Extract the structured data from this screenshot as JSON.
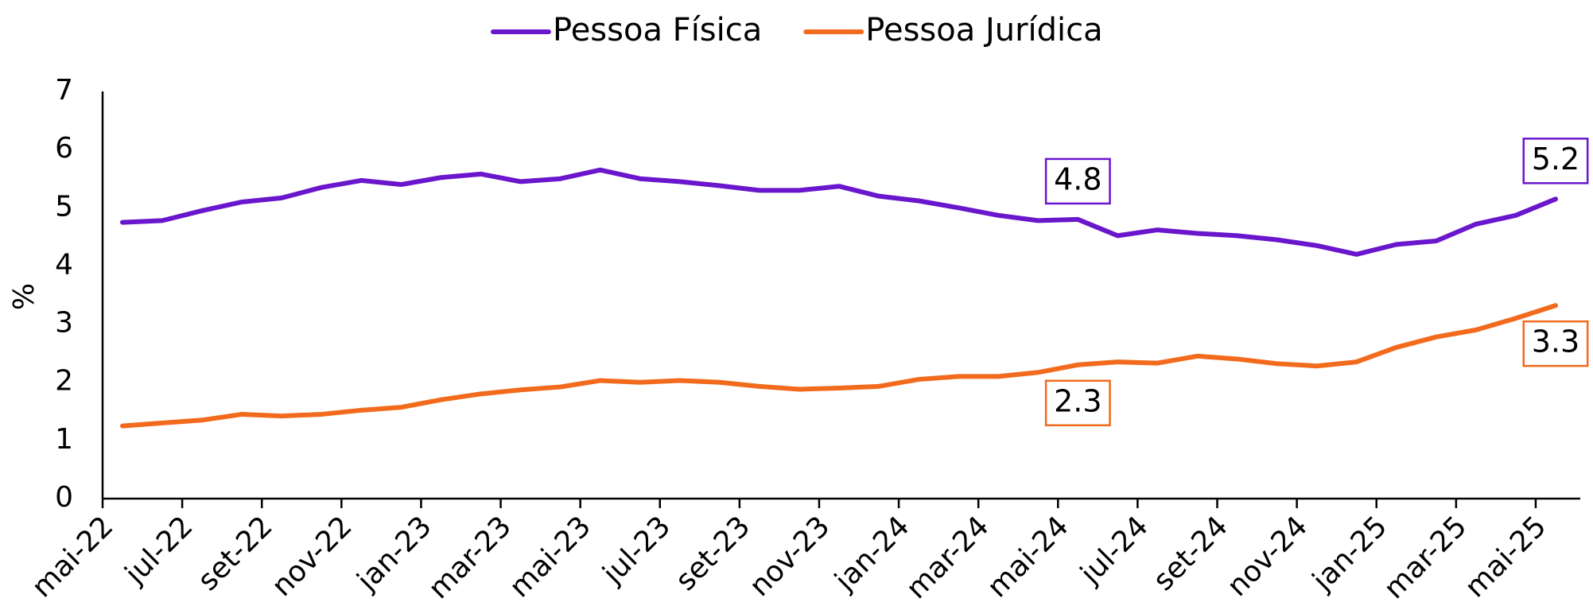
{
  "chart_data": {
    "type": "line",
    "y_label": "%",
    "categories": [
      "mai-22",
      null,
      "jul-22",
      null,
      "set-22",
      null,
      "nov-22",
      null,
      "jan-23",
      null,
      "mar-23",
      null,
      "mai-23",
      null,
      "jul-23",
      null,
      "set-23",
      null,
      "nov-23",
      null,
      "jan-24",
      null,
      "mar-24",
      null,
      "mai-24",
      null,
      "jul-24",
      null,
      "set-24",
      null,
      "nov-24",
      null,
      "jan-25",
      null,
      "mar-25",
      null,
      "mai-25"
    ],
    "series": [
      {
        "name": "Pessoa Física",
        "color": "#6a16cc",
        "values": [
          4.75,
          4.78,
          4.95,
          5.1,
          5.17,
          5.35,
          5.47,
          5.4,
          5.52,
          5.58,
          5.45,
          5.5,
          5.65,
          5.5,
          5.45,
          5.38,
          5.3,
          5.3,
          5.37,
          5.2,
          5.12,
          5.0,
          4.87,
          4.78,
          4.8,
          4.52,
          4.62,
          4.56,
          4.52,
          4.45,
          4.35,
          4.2,
          4.37,
          4.43,
          4.72,
          4.87,
          5.15
        ],
        "value_labels": [
          null,
          null,
          null,
          null,
          null,
          null,
          null,
          null,
          null,
          null,
          null,
          null,
          null,
          null,
          null,
          null,
          null,
          null,
          null,
          null,
          null,
          null,
          null,
          null,
          "4.8",
          null,
          null,
          null,
          null,
          null,
          null,
          null,
          null,
          null,
          null,
          null,
          "5.2"
        ]
      },
      {
        "name": "Pessoa Jurídica",
        "color": "#f26b1d",
        "values": [
          1.25,
          1.3,
          1.35,
          1.45,
          1.42,
          1.45,
          1.52,
          1.57,
          1.7,
          1.8,
          1.87,
          1.92,
          2.03,
          2.0,
          2.03,
          2.0,
          1.93,
          1.88,
          1.9,
          1.93,
          2.05,
          2.1,
          2.1,
          2.17,
          2.3,
          2.35,
          2.33,
          2.45,
          2.4,
          2.32,
          2.28,
          2.35,
          2.6,
          2.78,
          2.9,
          3.1,
          3.32
        ],
        "value_labels": [
          null,
          null,
          null,
          null,
          null,
          null,
          null,
          null,
          null,
          null,
          null,
          null,
          null,
          null,
          null,
          null,
          null,
          null,
          null,
          null,
          null,
          null,
          null,
          null,
          "2.3",
          null,
          null,
          null,
          null,
          null,
          null,
          null,
          null,
          null,
          null,
          null,
          "3.3"
        ]
      }
    ],
    "ylim": [
      0,
      7
    ],
    "yticks": [
      0,
      1,
      2,
      3,
      4,
      5,
      6,
      7
    ],
    "grid": false,
    "legend": "top"
  }
}
